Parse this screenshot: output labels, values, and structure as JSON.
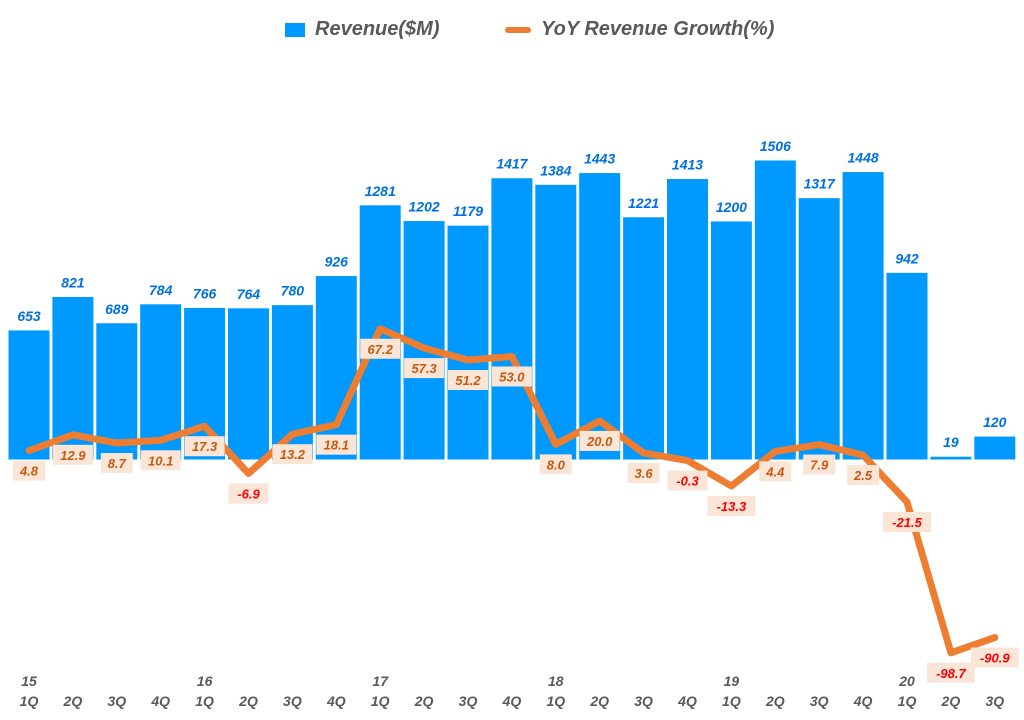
{
  "chart_data": {
    "type": "bar+line",
    "categories": [
      "1Q",
      "2Q",
      "3Q",
      "4Q",
      "1Q",
      "2Q",
      "3Q",
      "4Q",
      "1Q",
      "2Q",
      "3Q",
      "4Q",
      "1Q",
      "2Q",
      "3Q",
      "4Q",
      "1Q",
      "2Q",
      "3Q",
      "4Q",
      "1Q",
      "2Q",
      "3Q"
    ],
    "year_labels": [
      "15",
      "",
      "",
      "",
      "16",
      "",
      "",
      "",
      "17",
      "",
      "",
      "",
      "18",
      "",
      "",
      "",
      "19",
      "",
      "",
      "",
      "20",
      "",
      ""
    ],
    "series": [
      {
        "name": "Revenue($M)",
        "type": "bar",
        "color": "#0099ff",
        "values": [
          653,
          821,
          689,
          784,
          766,
          764,
          780,
          926,
          1281,
          1202,
          1179,
          1417,
          1384,
          1443,
          1221,
          1413,
          1200,
          1506,
          1317,
          1448,
          942,
          19,
          120
        ]
      },
      {
        "name": "YoY Revenue Growth(%)",
        "type": "line",
        "color": "#ed7d31",
        "values": [
          4.8,
          12.9,
          8.7,
          10.1,
          17.3,
          -6.9,
          13.2,
          18.1,
          67.2,
          57.3,
          51.2,
          53.0,
          8.0,
          20.0,
          3.6,
          -0.3,
          -13.3,
          4.4,
          7.9,
          2.5,
          -21.5,
          -98.7,
          -90.9
        ]
      }
    ],
    "legend": "top",
    "grid": false,
    "label_colors": {
      "bar": "#0070e0",
      "positive": "#c55a11",
      "negative": "#ff0000",
      "label_bg": "#fbe5d6",
      "axis": "#595959"
    }
  }
}
